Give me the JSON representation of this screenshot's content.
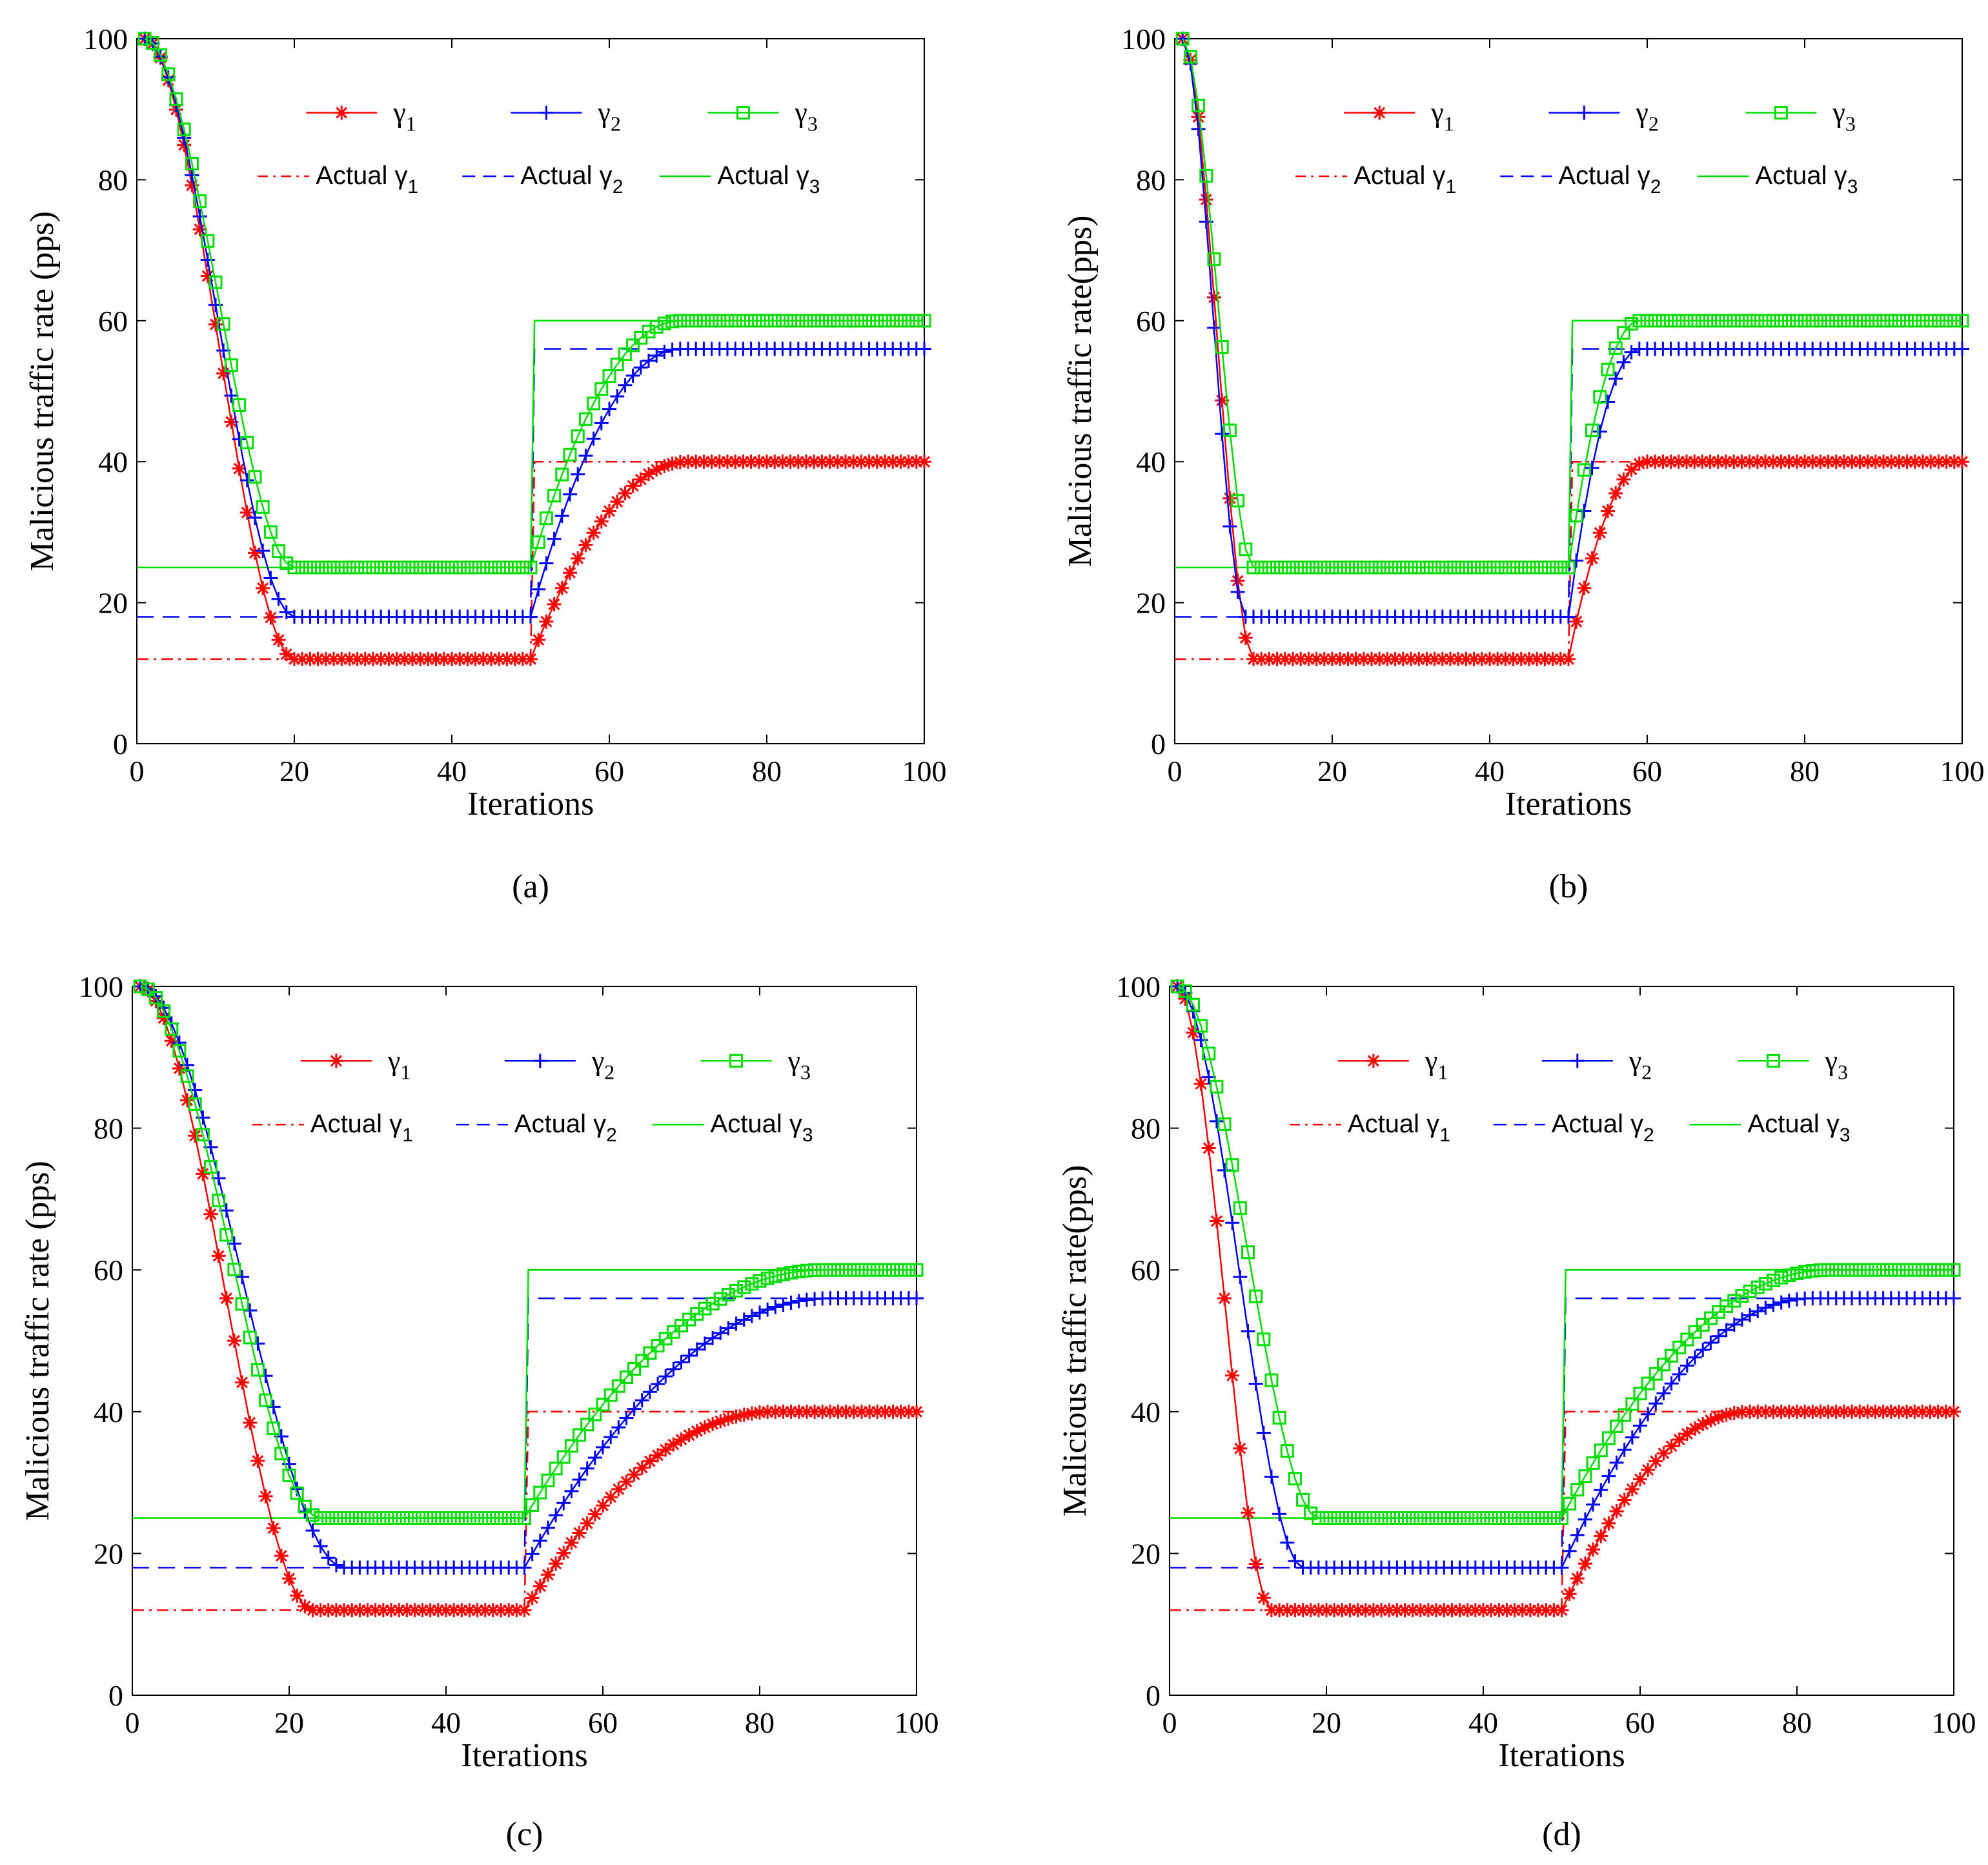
{
  "colors": {
    "r1": "#ff0000",
    "r2": "#0000ff",
    "r3": "#00dd00",
    "axis": "#000000"
  },
  "chart_data": [
    {
      "panel": "(a)",
      "type": "line",
      "xlabel": "Iterations",
      "ylabel": "Malicious traffic rate (pps)",
      "xlim": [
        0,
        100
      ],
      "ylim": [
        0,
        100
      ],
      "xticks": [
        0,
        20,
        40,
        60,
        80,
        100
      ],
      "yticks": [
        0,
        20,
        40,
        60,
        80,
        100
      ],
      "grid": false,
      "switch_iteration": 50,
      "actual_before": [
        12,
        18,
        25
      ],
      "actual_after": [
        40,
        56,
        60
      ],
      "series": [
        {
          "name": "γ1",
          "sub": "1",
          "actual_name": "Actual γ1",
          "color_key": "r1",
          "marker": "star",
          "start": 100,
          "phase1_end": 20,
          "phase2_end": 70
        },
        {
          "name": "γ2",
          "sub": "2",
          "actual_name": "Actual γ2",
          "color_key": "r2",
          "marker": "plus",
          "start": 100,
          "phase1_end": 20,
          "phase2_end": 69
        },
        {
          "name": "γ3",
          "sub": "3",
          "actual_name": "Actual γ3",
          "color_key": "r3",
          "marker": "square",
          "start": 100,
          "phase1_end": 20,
          "phase2_end": 69
        }
      ]
    },
    {
      "panel": "(b)",
      "type": "line",
      "xlabel": "Iterations",
      "ylabel": "Malicious traffic rate(pps)",
      "xlim": [
        0,
        100
      ],
      "ylim": [
        0,
        100
      ],
      "xticks": [
        0,
        20,
        40,
        60,
        80,
        100
      ],
      "yticks": [
        0,
        20,
        40,
        60,
        80,
        100
      ],
      "grid": false,
      "switch_iteration": 50,
      "actual_before": [
        12,
        18,
        25
      ],
      "actual_after": [
        40,
        56,
        60
      ],
      "series": [
        {
          "name": "γ1",
          "sub": "1",
          "actual_name": "Actual γ1",
          "color_key": "r1",
          "marker": "star",
          "start": 100,
          "phase1_end": 10,
          "phase2_end": 60
        },
        {
          "name": "γ2",
          "sub": "2",
          "actual_name": "Actual γ2",
          "color_key": "r2",
          "marker": "plus",
          "start": 100,
          "phase1_end": 9,
          "phase2_end": 59
        },
        {
          "name": "γ3",
          "sub": "3",
          "actual_name": "Actual γ3",
          "color_key": "r3",
          "marker": "square",
          "start": 100,
          "phase1_end": 10,
          "phase2_end": 59
        }
      ]
    },
    {
      "panel": "(c)",
      "type": "line",
      "xlabel": "Iterations",
      "ylabel": "Malicious traffic rate (pps)",
      "xlim": [
        0,
        100
      ],
      "ylim": [
        0,
        100
      ],
      "xticks": [
        0,
        20,
        40,
        60,
        80,
        100
      ],
      "yticks": [
        0,
        20,
        40,
        60,
        80,
        100
      ],
      "grid": false,
      "switch_iteration": 50,
      "actual_before": [
        12,
        18,
        25
      ],
      "actual_after": [
        40,
        56,
        60
      ],
      "series": [
        {
          "name": "γ1",
          "sub": "1",
          "actual_name": "Actual γ1",
          "color_key": "r1",
          "marker": "star",
          "start": 100,
          "phase1_end": 23,
          "phase2_end": 82
        },
        {
          "name": "γ2",
          "sub": "2",
          "actual_name": "Actual γ2",
          "color_key": "r2",
          "marker": "plus",
          "start": 100,
          "phase1_end": 27,
          "phase2_end": 89
        },
        {
          "name": "γ3",
          "sub": "3",
          "actual_name": "Actual γ3",
          "color_key": "r3",
          "marker": "square",
          "start": 100,
          "phase1_end": 24,
          "phase2_end": 88
        }
      ]
    },
    {
      "panel": "(d)",
      "type": "line",
      "xlabel": "Iterations",
      "ylabel": "Malicious traffic rate(pps)",
      "xlim": [
        0,
        100
      ],
      "ylim": [
        0,
        100
      ],
      "xticks": [
        0,
        20,
        40,
        60,
        80,
        100
      ],
      "yticks": [
        0,
        20,
        40,
        60,
        80,
        100
      ],
      "grid": false,
      "switch_iteration": 50,
      "actual_before": [
        12,
        18,
        25
      ],
      "actual_after": [
        40,
        56,
        60
      ],
      "series": [
        {
          "name": "γ1",
          "sub": "1",
          "actual_name": "Actual γ1",
          "color_key": "r1",
          "marker": "star",
          "start": 100,
          "phase1_end": 13,
          "phase2_end": 74
        },
        {
          "name": "γ2",
          "sub": "2",
          "actual_name": "Actual γ2",
          "color_key": "r2",
          "marker": "plus",
          "start": 100,
          "phase1_end": 17,
          "phase2_end": 82
        },
        {
          "name": "γ3",
          "sub": "3",
          "actual_name": "Actual γ3",
          "color_key": "r3",
          "marker": "square",
          "start": 100,
          "phase1_end": 19,
          "phase2_end": 84
        }
      ]
    }
  ]
}
